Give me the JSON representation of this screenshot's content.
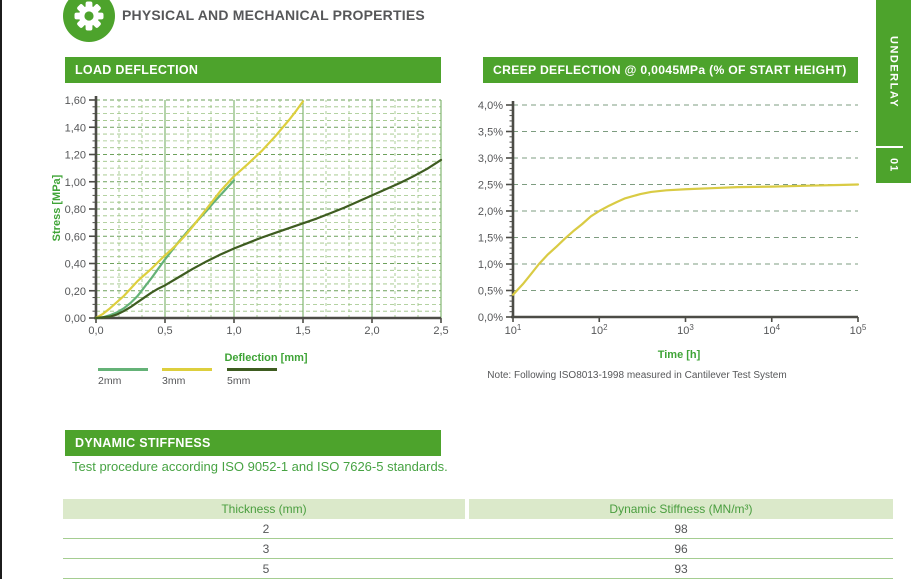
{
  "page": {
    "title": "PHYSICAL AND MECHANICAL PROPERTIES"
  },
  "side_tab": {
    "label": "UNDERLAY",
    "number": "01"
  },
  "sections": {
    "dynamic_stiffness": {
      "title": "DYNAMIC STIFFNESS",
      "subtitle": "Test procedure according ISO 9052-1 and ISO 7626-5 standards.",
      "table": {
        "headers": [
          "Thickness (mm)",
          "Dynamic Stiffness (MN/m³)"
        ],
        "rows": [
          [
            "2",
            "98"
          ],
          [
            "3",
            "96"
          ],
          [
            "5",
            "93"
          ]
        ]
      }
    }
  },
  "chart_data": [
    {
      "type": "line",
      "title": "LOAD DEFLECTION",
      "xlabel": "Deflection [mm]",
      "ylabel": "Stress [MPa]",
      "xlim": [
        0,
        2.5
      ],
      "ylim": [
        0,
        1.6
      ],
      "x_tick_values": [
        0,
        0.5,
        1,
        1.5,
        2,
        2.5
      ],
      "x_ticks": [
        "0,0",
        "0,5",
        "1,0",
        "1,5",
        "2,0",
        "2,5"
      ],
      "y_tick_values": [
        0,
        0.2,
        0.4,
        0.6,
        0.8,
        1,
        1.2,
        1.4,
        1.6
      ],
      "y_ticks": [
        "0,00",
        "0,20",
        "0,40",
        "0,60",
        "0,80",
        "1,00",
        "1,20",
        "1,40",
        "1,60"
      ],
      "grid": "dashed green, minor horizontal every 0.05, minor vertical every 0.167, solid vertical at 0.5 steps",
      "legend_position": "bottom",
      "series": [
        {
          "name": "2mm",
          "color": "#64b277",
          "points": [
            [
              0,
              0
            ],
            [
              0.05,
              0.005
            ],
            [
              0.1,
              0.02
            ],
            [
              0.15,
              0.04
            ],
            [
              0.2,
              0.07
            ],
            [
              0.25,
              0.11
            ],
            [
              0.3,
              0.16
            ],
            [
              0.35,
              0.225
            ],
            [
              0.4,
              0.29
            ],
            [
              0.45,
              0.36
            ],
            [
              0.5,
              0.43
            ],
            [
              0.55,
              0.495
            ],
            [
              0.6,
              0.56
            ],
            [
              0.65,
              0.62
            ],
            [
              0.7,
              0.675
            ],
            [
              0.75,
              0.73
            ],
            [
              0.8,
              0.785
            ],
            [
              0.85,
              0.845
            ],
            [
              0.9,
              0.9
            ],
            [
              0.95,
              0.955
            ],
            [
              1.0,
              1.01
            ]
          ]
        },
        {
          "name": "3mm",
          "color": "#ddcf3e",
          "points": [
            [
              0,
              0
            ],
            [
              0.05,
              0.03
            ],
            [
              0.1,
              0.07
            ],
            [
              0.15,
              0.115
            ],
            [
              0.2,
              0.16
            ],
            [
              0.25,
              0.215
            ],
            [
              0.3,
              0.27
            ],
            [
              0.35,
              0.315
            ],
            [
              0.4,
              0.36
            ],
            [
              0.45,
              0.41
            ],
            [
              0.5,
              0.46
            ],
            [
              0.55,
              0.505
            ],
            [
              0.6,
              0.555
            ],
            [
              0.65,
              0.61
            ],
            [
              0.7,
              0.67
            ],
            [
              0.75,
              0.735
            ],
            [
              0.8,
              0.8
            ],
            [
              0.85,
              0.865
            ],
            [
              0.9,
              0.93
            ],
            [
              0.95,
              0.985
            ],
            [
              1.0,
              1.04
            ],
            [
              1.1,
              1.13
            ],
            [
              1.2,
              1.225
            ],
            [
              1.3,
              1.335
            ],
            [
              1.4,
              1.455
            ],
            [
              1.45,
              1.52
            ],
            [
              1.5,
              1.59
            ]
          ]
        },
        {
          "name": "5mm",
          "color": "#3e5c20",
          "points": [
            [
              0,
              0
            ],
            [
              0.1,
              0.01
            ],
            [
              0.15,
              0.025
            ],
            [
              0.2,
              0.05
            ],
            [
              0.25,
              0.08
            ],
            [
              0.3,
              0.115
            ],
            [
              0.35,
              0.15
            ],
            [
              0.4,
              0.185
            ],
            [
              0.45,
              0.215
            ],
            [
              0.5,
              0.24
            ],
            [
              0.6,
              0.3
            ],
            [
              0.7,
              0.36
            ],
            [
              0.8,
              0.415
            ],
            [
              0.9,
              0.465
            ],
            [
              1.0,
              0.51
            ],
            [
              1.1,
              0.55
            ],
            [
              1.2,
              0.59
            ],
            [
              1.3,
              0.625
            ],
            [
              1.4,
              0.66
            ],
            [
              1.5,
              0.695
            ],
            [
              1.6,
              0.73
            ],
            [
              1.7,
              0.77
            ],
            [
              1.8,
              0.81
            ],
            [
              1.9,
              0.855
            ],
            [
              2.0,
              0.9
            ],
            [
              2.1,
              0.945
            ],
            [
              2.2,
              0.99
            ],
            [
              2.3,
              1.04
            ],
            [
              2.4,
              1.095
            ],
            [
              2.5,
              1.16
            ]
          ]
        }
      ]
    },
    {
      "type": "line",
      "title": "CREEP DEFLECTION @ 0,0045MPa (% OF START HEIGHT)",
      "xlabel": "Time [h]",
      "ylabel": "",
      "x_scale": "log",
      "xlim": [
        10,
        100000
      ],
      "ylim": [
        0,
        4
      ],
      "x_tick_exponents": [
        1,
        2,
        3,
        4,
        5
      ],
      "y_tick_values": [
        0,
        0.5,
        1,
        1.5,
        2,
        2.5,
        3,
        3.5,
        4
      ],
      "y_ticks": [
        "0,0%",
        "0,5%",
        "1,0%",
        "1,5%",
        "2,0%",
        "2,5%",
        "3,0%",
        "3,5%",
        "4,0%"
      ],
      "grid": "dashed horizontal at 0.5% steps",
      "note": "Note: Following ISO8013-1998 measured in Cantilever Test System",
      "series": [
        {
          "name": "creep",
          "color": "#d9cb44",
          "points": [
            [
              10,
              0.42
            ],
            [
              13,
              0.62
            ],
            [
              16,
              0.8
            ],
            [
              20,
              1.0
            ],
            [
              25,
              1.17
            ],
            [
              32,
              1.33
            ],
            [
              40,
              1.48
            ],
            [
              50,
              1.62
            ],
            [
              63,
              1.75
            ],
            [
              80,
              1.9
            ],
            [
              100,
              2.0
            ],
            [
              130,
              2.1
            ],
            [
              160,
              2.17
            ],
            [
              200,
              2.24
            ],
            [
              300,
              2.32
            ],
            [
              400,
              2.36
            ],
            [
              600,
              2.39
            ],
            [
              1000,
              2.41
            ],
            [
              2000,
              2.43
            ],
            [
              4000,
              2.45
            ],
            [
              10000,
              2.46
            ],
            [
              30000,
              2.48
            ],
            [
              60000,
              2.49
            ],
            [
              100000,
              2.5
            ]
          ]
        }
      ]
    }
  ],
  "colors": {
    "accent_green": "#4da32c",
    "axis_label_green": "#3fa437",
    "grid_green_minor": "#9cc483",
    "grid_green_major": "#6ea15c",
    "grid_green_vertical_major": "#78b066",
    "grid_gray_green": "#7d9c80",
    "axis_gray": "#4c4c46",
    "text_gray": "#565759",
    "table_header_bg": "#dbe9ca",
    "table_header_text": "#4a9e3f",
    "table_line": "#a5cd91",
    "tab_green": "#4da32c"
  }
}
